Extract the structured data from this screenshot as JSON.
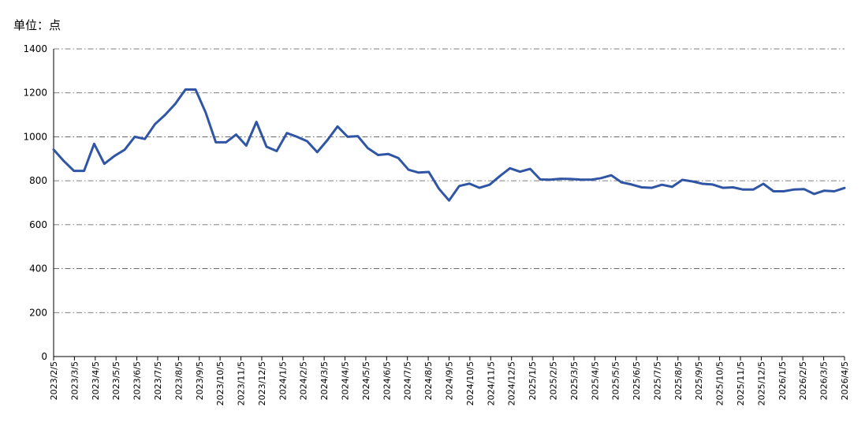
{
  "unit_label": "单位：点",
  "chart_data": {
    "type": "line",
    "title": "",
    "xlabel": "",
    "ylabel": "",
    "ylim": [
      0,
      1400
    ],
    "yticks": [
      0,
      200,
      400,
      600,
      800,
      1000,
      1200,
      1400
    ],
    "grid": true,
    "x_tick_labels": [
      "2023/2/5",
      "2023/3/5",
      "2023/4/5",
      "2023/5/5",
      "2023/6/5",
      "2023/7/5",
      "2023/8/5",
      "2023/9/5",
      "2023/10/5",
      "2023/11/5",
      "2023/12/5",
      "2024/1/5",
      "2024/2/5",
      "2024/3/5",
      "2024/4/5",
      "2024/5/5",
      "2024/6/5",
      "2024/7/5",
      "2024/8/5",
      "2024/9/5",
      "2024/10/5",
      "2024/11/5",
      "2024/12/5",
      "2025/1/5",
      "2025/2/5",
      "2025/3/5",
      "2025/4/5",
      "2025/5/5",
      "2025/6/5",
      "2025/7/5",
      "2025/8/5",
      "2025/9/5",
      "2025/10/5",
      "2025/11/5",
      "2025/12/5",
      "2026/1/5",
      "2026/2/5",
      "2026/3/5",
      "2026/4/5"
    ],
    "series": [
      {
        "color": "#2F55A4",
        "values": [
          942,
          890,
          845,
          845,
          968,
          877,
          913,
          941,
          1000,
          990,
          1058,
          1100,
          1150,
          1215,
          1215,
          1110,
          975,
          975,
          1010,
          960,
          1068,
          955,
          935,
          1017,
          1000,
          980,
          930,
          985,
          1047,
          1000,
          1003,
          948,
          917,
          922,
          903,
          850,
          837,
          840,
          764,
          710,
          776,
          787,
          768,
          782,
          821,
          857,
          841,
          854,
          806,
          805,
          809,
          808,
          805,
          805,
          812,
          825,
          793,
          783,
          770,
          768,
          782,
          772,
          804,
          797,
          786,
          783,
          768,
          770,
          760,
          760,
          786,
          752,
          752,
          760,
          762,
          740,
          755,
          752,
          767
        ]
      }
    ]
  }
}
